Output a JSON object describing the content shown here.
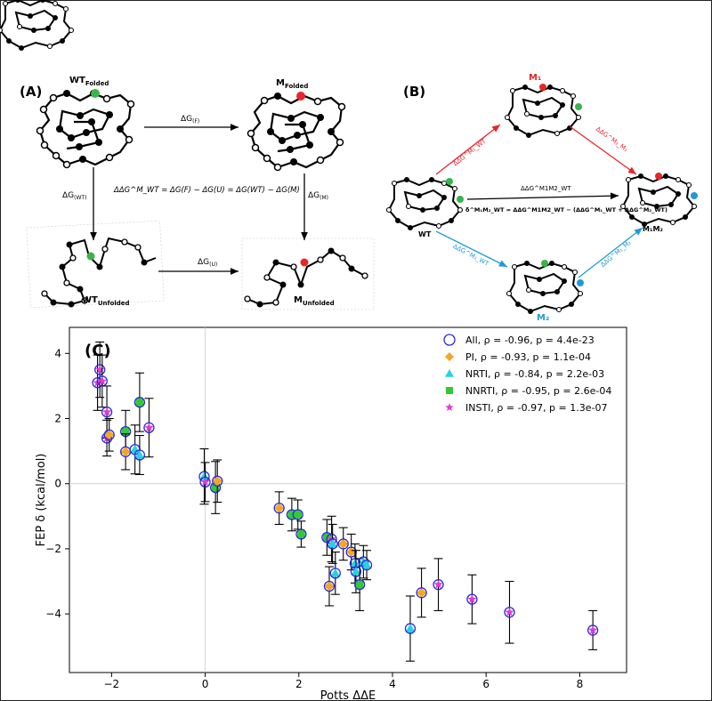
{
  "panel_a": {
    "label": "(A)",
    "wt_folded": "WT",
    "wt_folded_sub": "Folded",
    "m_folded": "M",
    "m_folded_sub": "Folded",
    "wt_unfolded": "WT",
    "wt_unfolded_sub": "Unfolded",
    "m_unfolded": "M",
    "m_unfolded_sub": "Unfolded",
    "dg_f": "ΔG",
    "dg_f_sub": "(F)",
    "dg_u": "ΔG",
    "dg_u_sub": "(U)",
    "dg_wt": "ΔG",
    "dg_wt_sub": "(WT)",
    "dg_m": "ΔG",
    "dg_m_sub": "(M)",
    "equation": "ΔΔG^M_WT = ΔG(F) − ΔG(U) = ΔG(WT) − ΔG(M)"
  },
  "panel_b": {
    "label": "(B)",
    "m1": "M₁",
    "m2": "M₂",
    "m1m2": "M₁M₂",
    "wt": "WT",
    "arrow_wt_m1": "ΔΔG^M₁_WT",
    "arrow_m1_m1m2": "ΔΔG^M₂_M₁",
    "arrow_wt_m1m2": "ΔΔG^M1M2_WT",
    "epsilon_eq": "δ^M₁M₂_WT = ΔΔG^M1M2_WT − (ΔΔG^M₁_WT + ΔΔG^M₂_WT)",
    "arrow_wt_m2": "ΔΔG^M₂_WT",
    "arrow_m2_m1m2": "ΔΔG^M₁_M₂",
    "colors": {
      "red": "#e8262a",
      "blue": "#1e9bd7",
      "green": "#3ab54a"
    }
  },
  "panel_c": {
    "label": "(C)",
    "chart_data": {
      "type": "scatter",
      "xlabel": "Potts ΔΔE",
      "ylabel": "FEP δ (kcal/mol)",
      "xlim": [
        -2.9,
        9.0
      ],
      "ylim": [
        -5.8,
        4.8
      ],
      "xticks": [
        -2,
        0,
        2,
        4,
        6,
        8
      ],
      "yticks": [
        -4,
        -2,
        0,
        2,
        4
      ],
      "xtick_labels": [
        "−2",
        "0",
        "2",
        "4",
        "6",
        "8"
      ],
      "ytick_labels": [
        "−4",
        "−2",
        "0",
        "2",
        "4"
      ],
      "grid": "zero lines only",
      "legend_position": "top-right",
      "legend": [
        {
          "name": "All, ρ = -0.96, p = 4.4e-23",
          "marker": "open-circle",
          "color": "#2b2bd8"
        },
        {
          "name": "PI, ρ = -0.93, p = 1.1e-04",
          "marker": "diamond",
          "color": "#f5a623"
        },
        {
          "name": "NRTI, ρ = -0.84, p = 2.2e-03",
          "marker": "triangle",
          "color": "#22d3e6"
        },
        {
          "name": "NNRTI, ρ = -0.95, p = 2.6e-04",
          "marker": "square",
          "color": "#33c933"
        },
        {
          "name": "INSTI, ρ = -0.97, p = 1.3e-07",
          "marker": "star",
          "color": "#e23ad6"
        }
      ],
      "points": [
        {
          "x": -2.3,
          "y": 3.1,
          "err": 0.85,
          "cls": "INSTI"
        },
        {
          "x": -2.25,
          "y": 3.5,
          "err": 0.85,
          "cls": "INSTI"
        },
        {
          "x": -2.2,
          "y": 3.15,
          "err": 0.8,
          "cls": "INSTI"
        },
        {
          "x": -2.1,
          "y": 2.2,
          "err": 0.8,
          "cls": "INSTI"
        },
        {
          "x": -2.1,
          "y": 1.4,
          "err": 0.55,
          "cls": "INSTI"
        },
        {
          "x": -2.05,
          "y": 1.5,
          "err": 0.5,
          "cls": "PI"
        },
        {
          "x": -1.7,
          "y": 1.6,
          "err": 0.65,
          "cls": "NNRTI"
        },
        {
          "x": -1.7,
          "y": 0.98,
          "err": 0.55,
          "cls": "PI"
        },
        {
          "x": -1.5,
          "y": 1.05,
          "err": 0.75,
          "cls": "NRTI"
        },
        {
          "x": -1.4,
          "y": 2.5,
          "err": 0.9,
          "cls": "NNRTI"
        },
        {
          "x": -1.4,
          "y": 0.88,
          "err": 0.6,
          "cls": "NRTI"
        },
        {
          "x": -1.2,
          "y": 1.72,
          "err": 0.9,
          "cls": "INSTI"
        },
        {
          "x": -0.02,
          "y": 0.22,
          "err": 0.85,
          "cls": "NRTI"
        },
        {
          "x": 0.0,
          "y": 0.05,
          "err": 0.6,
          "cls": "INSTI"
        },
        {
          "x": 0.22,
          "y": -0.12,
          "err": 0.8,
          "cls": "NNRTI"
        },
        {
          "x": 0.26,
          "y": 0.08,
          "err": 0.65,
          "cls": "PI"
        },
        {
          "x": 1.58,
          "y": -0.75,
          "err": 0.5,
          "cls": "PI"
        },
        {
          "x": 1.85,
          "y": -0.95,
          "err": 0.5,
          "cls": "NNRTI"
        },
        {
          "x": 1.98,
          "y": -0.95,
          "err": 0.45,
          "cls": "NNRTI"
        },
        {
          "x": 2.05,
          "y": -1.55,
          "err": 0.4,
          "cls": "NNRTI"
        },
        {
          "x": 2.6,
          "y": -1.65,
          "err": 0.55,
          "cls": "NNRTI"
        },
        {
          "x": 2.65,
          "y": -3.15,
          "err": 0.6,
          "cls": "PI"
        },
        {
          "x": 2.7,
          "y": -1.7,
          "err": 0.7,
          "cls": "INSTI"
        },
        {
          "x": 2.72,
          "y": -1.85,
          "err": 0.6,
          "cls": "NRTI"
        },
        {
          "x": 2.78,
          "y": -2.75,
          "err": 0.65,
          "cls": "NRTI"
        },
        {
          "x": 2.95,
          "y": -1.85,
          "err": 0.5,
          "cls": "PI"
        },
        {
          "x": 3.12,
          "y": -2.1,
          "err": 0.55,
          "cls": "PI"
        },
        {
          "x": 3.2,
          "y": -2.45,
          "err": 0.6,
          "cls": "NRTI"
        },
        {
          "x": 3.22,
          "y": -2.7,
          "err": 0.65,
          "cls": "NRTI"
        },
        {
          "x": 3.3,
          "y": -3.1,
          "err": 0.8,
          "cls": "NNRTI"
        },
        {
          "x": 3.38,
          "y": -2.4,
          "err": 0.5,
          "cls": "NRTI"
        },
        {
          "x": 3.45,
          "y": -2.5,
          "err": 0.45,
          "cls": "NRTI"
        },
        {
          "x": 4.38,
          "y": -4.45,
          "err": 1.0,
          "cls": "NRTI"
        },
        {
          "x": 4.62,
          "y": -3.35,
          "err": 0.75,
          "cls": "PI"
        },
        {
          "x": 4.98,
          "y": -3.1,
          "err": 0.8,
          "cls": "INSTI"
        },
        {
          "x": 5.7,
          "y": -3.55,
          "err": 0.75,
          "cls": "INSTI"
        },
        {
          "x": 6.5,
          "y": -3.95,
          "err": 0.95,
          "cls": "INSTI"
        },
        {
          "x": 8.28,
          "y": -4.5,
          "err": 0.6,
          "cls": "INSTI"
        }
      ]
    }
  }
}
